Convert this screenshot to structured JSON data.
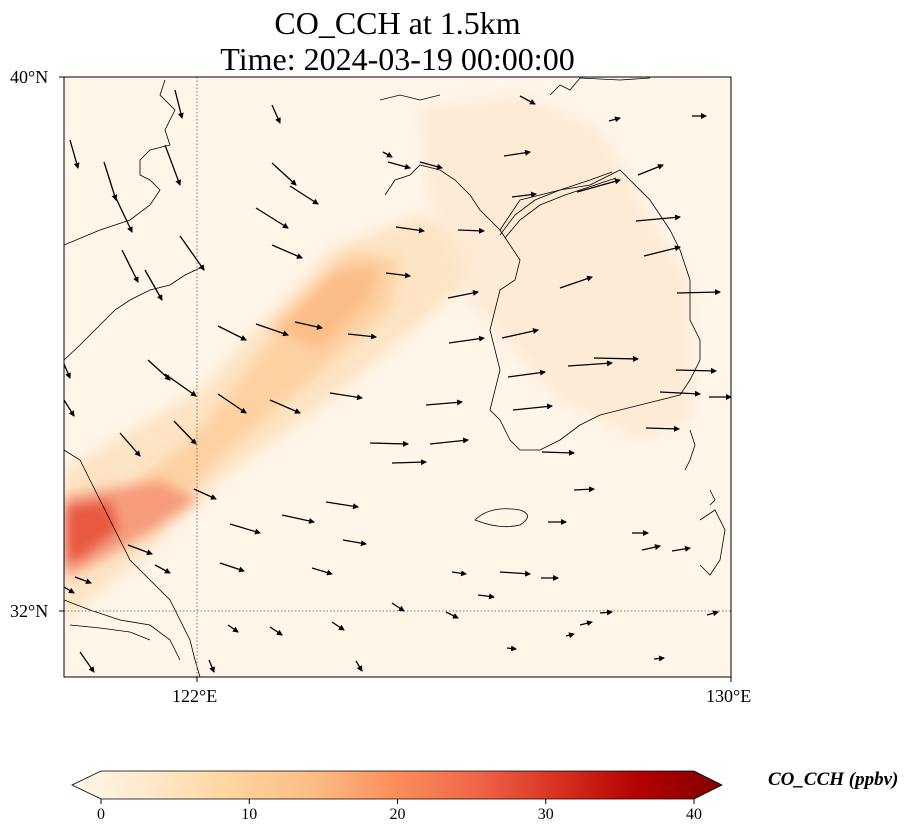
{
  "title": {
    "line1": "CO_CCH at 1.5km",
    "line2": "Time: 2024-03-19 00:00:00"
  },
  "axes": {
    "lat_ticks": [
      "40°N",
      "32°N"
    ],
    "lon_ticks": [
      "122°E",
      "130°E"
    ],
    "lon_range": [
      120,
      130
    ],
    "lat_range": [
      31,
      40
    ],
    "gridlines": "dotted at 122°E and 32°N"
  },
  "colorbar": {
    "label": "CO_CCH (ppbv)",
    "ticks": [
      "0",
      "10",
      "20",
      "30",
      "40"
    ],
    "range": [
      0,
      40
    ],
    "colormap": "OrRd",
    "extend": "both",
    "stops": [
      "#fff7ec",
      "#fee8c8",
      "#fdd49e",
      "#fdbb84",
      "#fc8d59",
      "#ef6548",
      "#d7301f",
      "#b30000",
      "#7f0000"
    ]
  },
  "chart_data": {
    "type": "heatmap",
    "title": "CO_CCH at 1.5km\nTime: 2024-03-19 00:00:00",
    "variable": "CO_CCH",
    "units": "ppbv",
    "level": "1.5km",
    "time": "2024-03-19 00:00:00",
    "xlim": [
      120,
      130
    ],
    "ylim": [
      31,
      40
    ],
    "plume": {
      "description": "elongated band oriented SW-NE from coast near 120°E,33°N to Yellow Sea near 126°E,38°N",
      "max_value_ppbv": 22,
      "max_location": [
        120.2,
        32.6
      ],
      "band_values_ppbv": 9
    },
    "wind_field": "vectors mostly southeastward over land/north, eastward over Korea and the Yellow Sea"
  }
}
